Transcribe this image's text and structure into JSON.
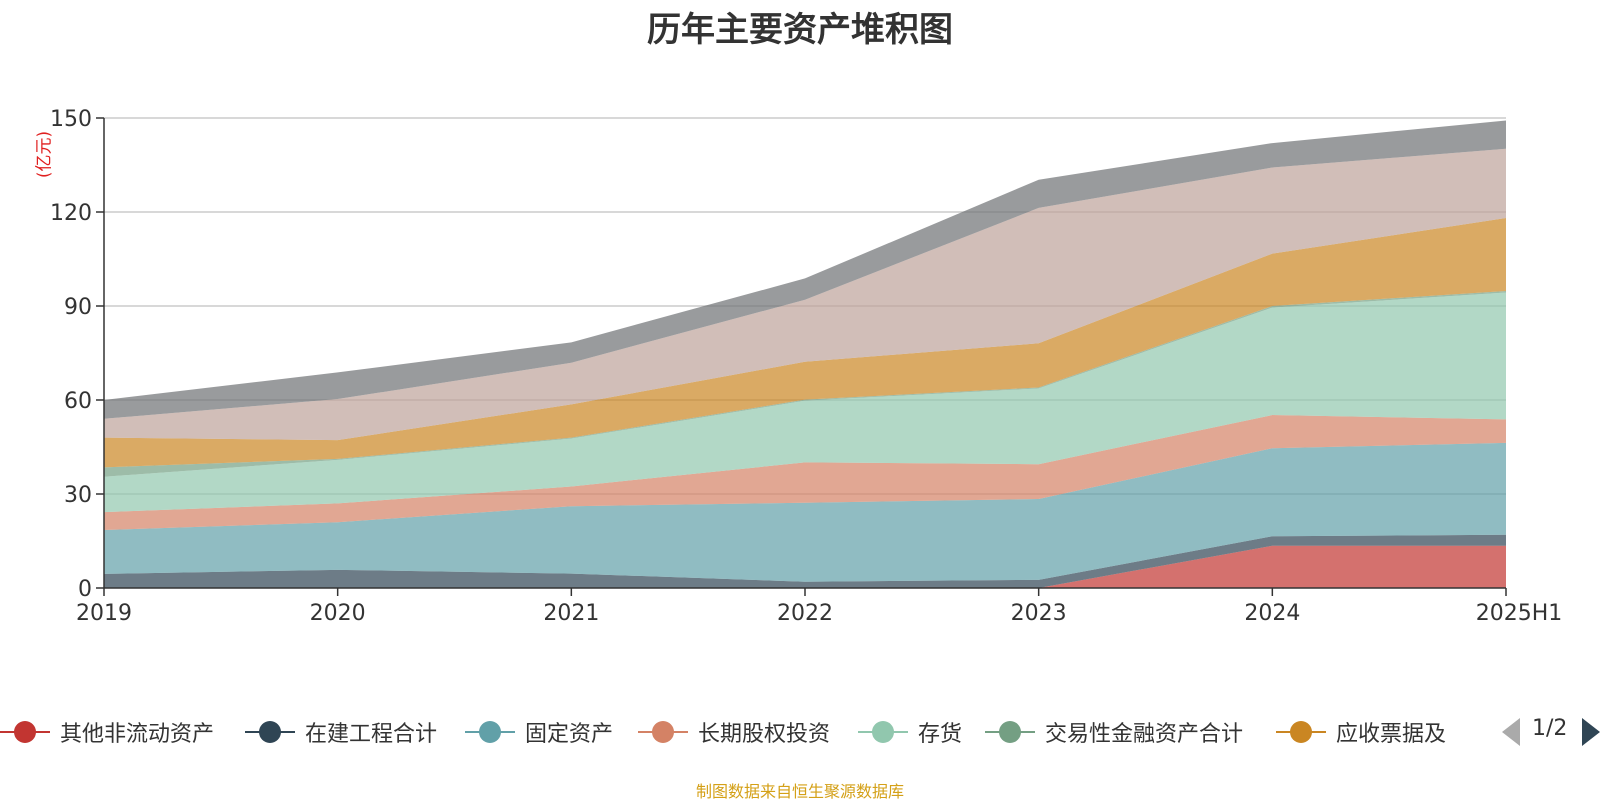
{
  "chart_data": {
    "type": "area",
    "title": "历年主要资产堆积图",
    "ylabel": "亿元",
    "ylabel_display": "(亿元)",
    "xlabel": "",
    "ylim": [
      0,
      150
    ],
    "yticks": [
      0,
      30,
      60,
      90,
      120,
      150
    ],
    "categories": [
      "2019",
      "2020",
      "2021",
      "2022",
      "2023",
      "2024",
      "2025H1"
    ],
    "stacked": true,
    "grid": true,
    "legend_position": "bottom",
    "series": [
      {
        "name": "其他非流动资产",
        "color": "#c23531",
        "values": [
          0,
          0,
          0,
          0,
          0,
          13.5,
          13.5
        ]
      },
      {
        "name": "在建工程合计",
        "color": "#2f4554",
        "values": [
          4.5,
          5.8,
          4.6,
          2.0,
          2.6,
          3.0,
          3.5
        ]
      },
      {
        "name": "固定资产",
        "color": "#61a0a8",
        "values": [
          14,
          15.2,
          21.5,
          25.2,
          25.8,
          28.1,
          29.3
        ]
      },
      {
        "name": "长期股权投资",
        "color": "#d48265",
        "values": [
          5.7,
          6.0,
          6.3,
          12.9,
          11.1,
          10.6,
          7.5
        ]
      },
      {
        "name": "存货",
        "color": "#91c7ae",
        "values": [
          11.3,
          13.9,
          15.3,
          19.7,
          24.2,
          34.3,
          40.5
        ]
      },
      {
        "name": "交易性金融资产合计",
        "color": "#749f83",
        "values": [
          3.0,
          0.3,
          0.3,
          0.3,
          0.3,
          0.5,
          0.5
        ]
      },
      {
        "name": "应收票据及",
        "color": "#ca8622",
        "values": [
          9.5,
          6.0,
          10.6,
          12.1,
          14.1,
          16.7,
          23.3
        ]
      },
      {
        "name": "",
        "color": "#bda29a",
        "values": [
          6.0,
          13.1,
          13.3,
          19.8,
          43.2,
          27.5,
          22.1
        ]
      },
      {
        "name": "",
        "color": "#6e7074",
        "values": [
          6.0,
          8.5,
          6.5,
          6.8,
          9.0,
          7.8,
          9.0
        ]
      }
    ]
  },
  "legend": {
    "items": [
      {
        "label": "其他非流动资产",
        "color": "#c23531"
      },
      {
        "label": "在建工程合计",
        "color": "#2f4554"
      },
      {
        "label": "固定资产",
        "color": "#61a0a8"
      },
      {
        "label": "长期股权投资",
        "color": "#d48265"
      },
      {
        "label": "存货",
        "color": "#91c7ae"
      },
      {
        "label": "交易性金融资产合计",
        "color": "#749f83"
      },
      {
        "label": "应收票据及",
        "color": "#ca8622"
      }
    ],
    "pager": "1/2"
  },
  "source": "制图数据来自恒生聚源数据库"
}
